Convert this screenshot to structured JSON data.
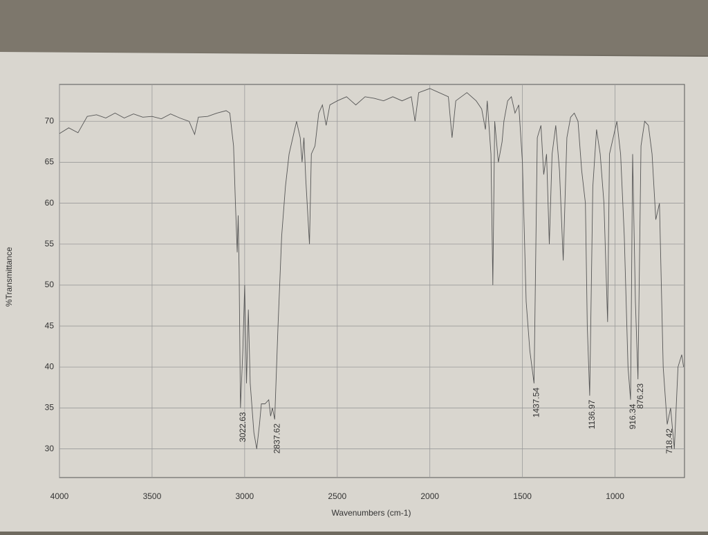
{
  "chart_data": {
    "type": "line",
    "x_label": "Wavenumbers (cm-1)",
    "y_label": "%Transmittance",
    "xlim": [
      4000,
      625
    ],
    "ylim": [
      26.5,
      74.5
    ],
    "xticks": [
      4000,
      3500,
      3000,
      2500,
      2000,
      1500,
      1000
    ],
    "yticks": [
      30,
      35,
      40,
      45,
      50,
      55,
      60,
      65,
      70
    ],
    "grid": true,
    "peak_labels": [
      3022.63,
      2837.62,
      1437.54,
      1136.97,
      916.34,
      876.23,
      718.42
    ],
    "series": [
      {
        "color": "#555555",
        "x": [
          4000,
          3950,
          3900,
          3850,
          3800,
          3750,
          3700,
          3650,
          3600,
          3550,
          3500,
          3450,
          3400,
          3350,
          3300,
          3270,
          3250,
          3200,
          3150,
          3100,
          3080,
          3060,
          3050,
          3040,
          3035,
          3030,
          3022.63,
          3010,
          3000,
          2990,
          2980,
          2970,
          2950,
          2935,
          2920,
          2910,
          2890,
          2870,
          2860,
          2850,
          2837.62,
          2820,
          2800,
          2780,
          2760,
          2740,
          2720,
          2700,
          2690,
          2680,
          2670,
          2650,
          2640,
          2620,
          2600,
          2580,
          2560,
          2540,
          2500,
          2450,
          2400,
          2350,
          2300,
          2250,
          2200,
          2150,
          2100,
          2080,
          2060,
          2000,
          1950,
          1900,
          1880,
          1860,
          1800,
          1750,
          1720,
          1700,
          1690,
          1670,
          1660,
          1650,
          1630,
          1610,
          1600,
          1580,
          1560,
          1540,
          1520,
          1500,
          1480,
          1460,
          1437.54,
          1420,
          1400,
          1385,
          1370,
          1355,
          1340,
          1320,
          1300,
          1280,
          1260,
          1240,
          1220,
          1200,
          1180,
          1160,
          1150,
          1136.97,
          1120,
          1100,
          1080,
          1060,
          1040,
          1030,
          1010,
          990,
          970,
          950,
          930,
          916.34,
          905,
          890,
          876.23,
          860,
          840,
          820,
          800,
          780,
          760,
          740,
          718.42,
          700,
          680,
          660,
          640,
          630
        ],
        "values": [
          68.5,
          69.2,
          68.6,
          70.6,
          70.8,
          70.4,
          71,
          70.4,
          70.9,
          70.5,
          70.6,
          70.3,
          70.9,
          70.4,
          70,
          68.4,
          70.5,
          70.6,
          71,
          71.3,
          71,
          67,
          60,
          54,
          58.5,
          52,
          35,
          42,
          50,
          38,
          47,
          38,
          32,
          30,
          33,
          35.5,
          35.5,
          36,
          34,
          35,
          33.6,
          45,
          56,
          62,
          66,
          68,
          70,
          68,
          65,
          68,
          63,
          55,
          66,
          67,
          71,
          72,
          69.5,
          72,
          72.5,
          73,
          72,
          73,
          72.8,
          72.5,
          73,
          72.5,
          73,
          70,
          73.5,
          74,
          73.5,
          73,
          68,
          72.5,
          73.5,
          72.5,
          71.5,
          69,
          72.5,
          66,
          50,
          70,
          65,
          67.5,
          70,
          72.5,
          73,
          71,
          72,
          65,
          48,
          42,
          38,
          68,
          69.5,
          63.5,
          66,
          55,
          66,
          69.5,
          64,
          53,
          68,
          70.5,
          71,
          70,
          64,
          60,
          45,
          36.5,
          62,
          69,
          66,
          60,
          45.5,
          66,
          68,
          70,
          66,
          56,
          40,
          36,
          66,
          48,
          38.5,
          67,
          70,
          69.5,
          66,
          58,
          60,
          40,
          33,
          35,
          30,
          40,
          41.5,
          40
        ]
      }
    ]
  }
}
